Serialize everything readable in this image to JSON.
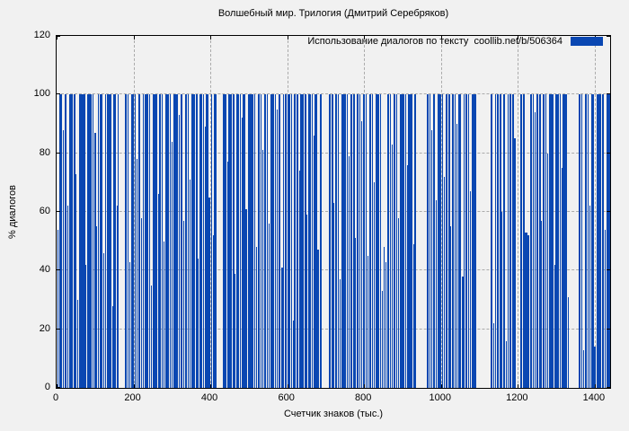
{
  "title": "Волшебный мир. Трилогия (Дмитрий Серебряков)",
  "legend": {
    "label": "Использование диалогов по тексту  coollib.net/b/506364"
  },
  "axes": {
    "x_label": "Счетчик знаков (тыс.)",
    "y_label": "% диалогов"
  },
  "colors": {
    "bar": "#0a47b2",
    "grid": "#ababab",
    "background": "#f1f1f1",
    "border": "#000000"
  },
  "chart_data": {
    "type": "bar",
    "title": "Волшебный мир. Трилогия (Дмитрий Серебряков)",
    "xlabel": "Счетчик знаков (тыс.)",
    "ylabel": "% диалогов",
    "xlim": [
      0,
      1440
    ],
    "ylim": [
      0,
      120
    ],
    "xticks": [
      0,
      200,
      400,
      600,
      800,
      1000,
      1200,
      1400
    ],
    "yticks": [
      0,
      20,
      40,
      60,
      80,
      100,
      120
    ],
    "grid": true,
    "legend_position": "top-right-inside",
    "legend_entries": [
      "Использование диалогов по тексту  coollib.net/b/506364"
    ],
    "bars_format": "[x_start_thousand_chars, width_thousand_chars, percent_dialogs]",
    "bars": [
      [
        2,
        3,
        54
      ],
      [
        7,
        7,
        100
      ],
      [
        16,
        3,
        88
      ],
      [
        21,
        4,
        100
      ],
      [
        27,
        3,
        62
      ],
      [
        33,
        10,
        100
      ],
      [
        45,
        3,
        100
      ],
      [
        49,
        3,
        73
      ],
      [
        54,
        2,
        30
      ],
      [
        58,
        11,
        100
      ],
      [
        71,
        3,
        100
      ],
      [
        75,
        2,
        42
      ],
      [
        79,
        12,
        100
      ],
      [
        93,
        4,
        100
      ],
      [
        99,
        3,
        87
      ],
      [
        104,
        2,
        55
      ],
      [
        108,
        3,
        100
      ],
      [
        113,
        7,
        100
      ],
      [
        122,
        3,
        46
      ],
      [
        127,
        2,
        100
      ],
      [
        131,
        6,
        100
      ],
      [
        139,
        3,
        100
      ],
      [
        144,
        2,
        28
      ],
      [
        148,
        6,
        100
      ],
      [
        156,
        2,
        62
      ],
      [
        160,
        2,
        100
      ],
      [
        178,
        5,
        100
      ],
      [
        185,
        3,
        100
      ],
      [
        190,
        2,
        43
      ],
      [
        194,
        7,
        100
      ],
      [
        203,
        3,
        100
      ],
      [
        208,
        2,
        78
      ],
      [
        212,
        5,
        100
      ],
      [
        219,
        3,
        58
      ],
      [
        224,
        2,
        100
      ],
      [
        228,
        11,
        100
      ],
      [
        241,
        3,
        100
      ],
      [
        246,
        2,
        35
      ],
      [
        250,
        6,
        100
      ],
      [
        258,
        3,
        100
      ],
      [
        263,
        2,
        66
      ],
      [
        267,
        5,
        100
      ],
      [
        274,
        3,
        100
      ],
      [
        279,
        2,
        50
      ],
      [
        283,
        10,
        100
      ],
      [
        295,
        3,
        100
      ],
      [
        300,
        2,
        84
      ],
      [
        304,
        6,
        100
      ],
      [
        312,
        3,
        100
      ],
      [
        317,
        3,
        93
      ],
      [
        322,
        6,
        100
      ],
      [
        330,
        2,
        57
      ],
      [
        334,
        5,
        100
      ],
      [
        341,
        3,
        100
      ],
      [
        346,
        2,
        71
      ],
      [
        350,
        11,
        100
      ],
      [
        363,
        3,
        100
      ],
      [
        368,
        2,
        44
      ],
      [
        372,
        6,
        100
      ],
      [
        380,
        3,
        100
      ],
      [
        385,
        2,
        89
      ],
      [
        389,
        5,
        100
      ],
      [
        396,
        3,
        65
      ],
      [
        401,
        3,
        100
      ],
      [
        406,
        2,
        52
      ],
      [
        410,
        5,
        100
      ],
      [
        432,
        4,
        100
      ],
      [
        438,
        3,
        100
      ],
      [
        443,
        2,
        77
      ],
      [
        447,
        10,
        100
      ],
      [
        459,
        3,
        100
      ],
      [
        464,
        2,
        39
      ],
      [
        468,
        6,
        100
      ],
      [
        476,
        3,
        100
      ],
      [
        481,
        2,
        92
      ],
      [
        485,
        5,
        100
      ],
      [
        492,
        3,
        61
      ],
      [
        497,
        2,
        100
      ],
      [
        501,
        11,
        100
      ],
      [
        514,
        3,
        100
      ],
      [
        519,
        2,
        48
      ],
      [
        523,
        6,
        100
      ],
      [
        531,
        3,
        100
      ],
      [
        536,
        2,
        81
      ],
      [
        540,
        5,
        100
      ],
      [
        547,
        3,
        100
      ],
      [
        552,
        2,
        56
      ],
      [
        556,
        10,
        100
      ],
      [
        568,
        3,
        100
      ],
      [
        573,
        2,
        95
      ],
      [
        577,
        6,
        100
      ],
      [
        585,
        3,
        41
      ],
      [
        590,
        2,
        100
      ],
      [
        594,
        5,
        100
      ],
      [
        601,
        6,
        100
      ],
      [
        609,
        3,
        100
      ],
      [
        614,
        2,
        23
      ],
      [
        618,
        5,
        100
      ],
      [
        625,
        3,
        100
      ],
      [
        630,
        2,
        74
      ],
      [
        634,
        10,
        100
      ],
      [
        646,
        3,
        100
      ],
      [
        651,
        2,
        59
      ],
      [
        655,
        6,
        100
      ],
      [
        663,
        3,
        100
      ],
      [
        668,
        2,
        86
      ],
      [
        672,
        5,
        100
      ],
      [
        679,
        3,
        47
      ],
      [
        684,
        2,
        100
      ],
      [
        687,
        3,
        100
      ],
      [
        708,
        6,
        100
      ],
      [
        716,
        3,
        100
      ],
      [
        721,
        2,
        63
      ],
      [
        725,
        5,
        100
      ],
      [
        732,
        3,
        100
      ],
      [
        737,
        2,
        37
      ],
      [
        741,
        12,
        100
      ],
      [
        755,
        3,
        100
      ],
      [
        760,
        2,
        79
      ],
      [
        764,
        6,
        100
      ],
      [
        772,
        3,
        100
      ],
      [
        777,
        2,
        51
      ],
      [
        781,
        5,
        100
      ],
      [
        788,
        3,
        100
      ],
      [
        793,
        2,
        91
      ],
      [
        797,
        5,
        100
      ],
      [
        804,
        3,
        100
      ],
      [
        809,
        2,
        45
      ],
      [
        813,
        5,
        100
      ],
      [
        820,
        3,
        100
      ],
      [
        825,
        2,
        70
      ],
      [
        829,
        10,
        100
      ],
      [
        841,
        3,
        100
      ],
      [
        846,
        2,
        33
      ],
      [
        850,
        3,
        48
      ],
      [
        855,
        3,
        43
      ],
      [
        860,
        5,
        100
      ],
      [
        867,
        3,
        100
      ],
      [
        872,
        2,
        83
      ],
      [
        876,
        6,
        100
      ],
      [
        884,
        3,
        100
      ],
      [
        889,
        2,
        58
      ],
      [
        893,
        11,
        100
      ],
      [
        906,
        3,
        100
      ],
      [
        911,
        2,
        76
      ],
      [
        915,
        5,
        100
      ],
      [
        922,
        3,
        100
      ],
      [
        927,
        2,
        49
      ],
      [
        931,
        3,
        100
      ],
      [
        962,
        6,
        100
      ],
      [
        970,
        3,
        100
      ],
      [
        975,
        2,
        88
      ],
      [
        979,
        5,
        100
      ],
      [
        986,
        3,
        64
      ],
      [
        991,
        4,
        100
      ],
      [
        997,
        4,
        100
      ],
      [
        1003,
        3,
        100
      ],
      [
        1008,
        2,
        72
      ],
      [
        1012,
        6,
        100
      ],
      [
        1020,
        3,
        100
      ],
      [
        1025,
        2,
        55
      ],
      [
        1029,
        5,
        100
      ],
      [
        1036,
        3,
        100
      ],
      [
        1041,
        2,
        90
      ],
      [
        1045,
        8,
        100
      ],
      [
        1055,
        3,
        38
      ],
      [
        1060,
        2,
        100
      ],
      [
        1064,
        5,
        100
      ],
      [
        1071,
        3,
        100
      ],
      [
        1076,
        2,
        67
      ],
      [
        1080,
        6,
        100
      ],
      [
        1088,
        4,
        100
      ],
      [
        1130,
        4,
        100
      ],
      [
        1136,
        3,
        22
      ],
      [
        1141,
        2,
        100
      ],
      [
        1145,
        6,
        100
      ],
      [
        1153,
        3,
        100
      ],
      [
        1158,
        2,
        60
      ],
      [
        1162,
        5,
        100
      ],
      [
        1169,
        3,
        16
      ],
      [
        1174,
        2,
        100
      ],
      [
        1178,
        6,
        100
      ],
      [
        1186,
        3,
        100
      ],
      [
        1191,
        3,
        85
      ],
      [
        1207,
        5,
        100
      ],
      [
        1214,
        3,
        100
      ],
      [
        1219,
        5,
        53
      ],
      [
        1226,
        4,
        52
      ],
      [
        1232,
        5,
        100
      ],
      [
        1239,
        3,
        100
      ],
      [
        1244,
        2,
        94
      ],
      [
        1248,
        6,
        100
      ],
      [
        1256,
        3,
        100
      ],
      [
        1261,
        2,
        57
      ],
      [
        1265,
        5,
        100
      ],
      [
        1272,
        3,
        100
      ],
      [
        1277,
        2,
        80
      ],
      [
        1281,
        6,
        100
      ],
      [
        1289,
        3,
        100
      ],
      [
        1294,
        2,
        42
      ],
      [
        1298,
        8,
        100
      ],
      [
        1308,
        3,
        100
      ],
      [
        1313,
        2,
        75
      ],
      [
        1317,
        5,
        100
      ],
      [
        1324,
        3,
        100
      ],
      [
        1329,
        3,
        31
      ],
      [
        1358,
        5,
        100
      ],
      [
        1365,
        3,
        100
      ],
      [
        1370,
        3,
        13
      ],
      [
        1375,
        5,
        100
      ],
      [
        1382,
        3,
        100
      ],
      [
        1387,
        2,
        62
      ],
      [
        1391,
        6,
        100
      ],
      [
        1399,
        3,
        14
      ],
      [
        1404,
        2,
        100
      ],
      [
        1408,
        9,
        100
      ],
      [
        1419,
        4,
        100
      ],
      [
        1425,
        3,
        54
      ],
      [
        1430,
        10,
        100
      ]
    ]
  }
}
